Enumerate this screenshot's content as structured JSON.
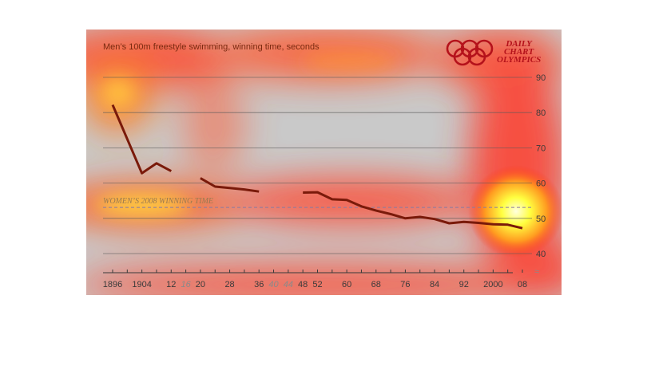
{
  "chart_data": {
    "type": "line",
    "title": "Men’s 100m freestyle swimming, winning time, seconds",
    "brand": {
      "lines": [
        "DAILY",
        "CHART",
        "OLYMPICS"
      ],
      "color": "#b5121b"
    },
    "xlabel": "",
    "ylabel": "",
    "ylim": [
      38,
      93
    ],
    "yticks": [
      40,
      50,
      60,
      70,
      80,
      90
    ],
    "axis_break_symbol": "≈",
    "x_ticks": [
      {
        "label": "1896",
        "year": 1896,
        "muted": false
      },
      {
        "label": "1904",
        "year": 1904,
        "muted": false
      },
      {
        "label": "12",
        "year": 1912,
        "muted": false
      },
      {
        "label": "16",
        "year": 1916,
        "muted": true
      },
      {
        "label": "20",
        "year": 1920,
        "muted": false
      },
      {
        "label": "28",
        "year": 1928,
        "muted": false
      },
      {
        "label": "36",
        "year": 1936,
        "muted": false
      },
      {
        "label": "40",
        "year": 1940,
        "muted": true
      },
      {
        "label": "44",
        "year": 1944,
        "muted": true
      },
      {
        "label": "48",
        "year": 1948,
        "muted": false
      },
      {
        "label": "52",
        "year": 1952,
        "muted": false
      },
      {
        "label": "60",
        "year": 1960,
        "muted": false
      },
      {
        "label": "68",
        "year": 1968,
        "muted": false
      },
      {
        "label": "76",
        "year": 1976,
        "muted": false
      },
      {
        "label": "84",
        "year": 1984,
        "muted": false
      },
      {
        "label": "92",
        "year": 1992,
        "muted": false
      },
      {
        "label": "2000",
        "year": 2000,
        "muted": false
      },
      {
        "label": "08",
        "year": 2008,
        "muted": false
      }
    ],
    "series": [
      {
        "color": "#7a1a0a",
        "segments": [
          [
            [
              1896,
              82.2
            ],
            [
              1904,
              62.8
            ],
            [
              1908,
              65.6
            ],
            [
              1912,
              63.4
            ]
          ],
          [
            [
              1920,
              61.4
            ],
            [
              1924,
              59.0
            ],
            [
              1928,
              58.6
            ],
            [
              1932,
              58.2
            ],
            [
              1936,
              57.6
            ]
          ],
          [
            [
              1948,
              57.3
            ],
            [
              1952,
              57.4
            ],
            [
              1956,
              55.4
            ],
            [
              1960,
              55.2
            ],
            [
              1964,
              53.4
            ],
            [
              1968,
              52.2
            ],
            [
              1972,
              51.2
            ],
            [
              1976,
              50.0
            ],
            [
              1980,
              50.4
            ],
            [
              1984,
              49.8
            ],
            [
              1988,
              48.6
            ],
            [
              1992,
              49.0
            ],
            [
              1996,
              48.7
            ],
            [
              2000,
              48.3
            ],
            [
              2004,
              48.2
            ],
            [
              2008,
              47.2
            ]
          ]
        ]
      }
    ],
    "reference_line": {
      "label": "WOMEN’S 2008 WINNING TIME",
      "value": 53.1,
      "color": "#8a7aa0"
    },
    "grid": true,
    "colors": {
      "panel": "#c9c9c9",
      "line": "#7a1a0a",
      "title": "#7a2a10",
      "gridline": "#5a5a5a"
    }
  }
}
